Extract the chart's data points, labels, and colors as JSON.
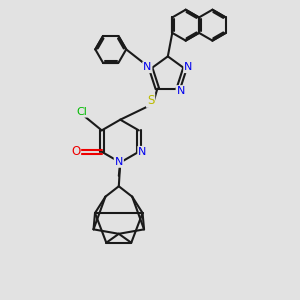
{
  "bg_color": "#e2e2e2",
  "bond_color": "#1a1a1a",
  "N_color": "#0000ee",
  "O_color": "#ee0000",
  "S_color": "#bbbb00",
  "Cl_color": "#00bb00",
  "lw": 1.5,
  "xlim": [
    0,
    10
  ],
  "ylim": [
    0,
    10
  ]
}
